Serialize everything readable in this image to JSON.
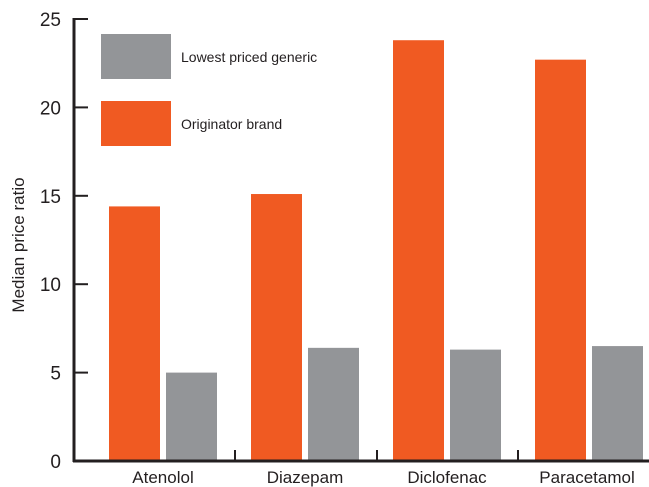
{
  "chart_data": {
    "type": "bar",
    "ylabel": "Median price ratio",
    "xlabel": "",
    "ylim": [
      0,
      25
    ],
    "yticks": [
      "0",
      "5",
      "10",
      "15",
      "20",
      "25"
    ],
    "categories": [
      "Atenolol",
      "Diazepam",
      "Diclofenac",
      "Paracetamol"
    ],
    "series": [
      {
        "name": "Originator brand",
        "color": "#f05a22",
        "values": [
          14.4,
          15.1,
          23.8,
          22.7
        ]
      },
      {
        "name": "Lowest priced generic",
        "color": "#939598",
        "values": [
          5.0,
          6.4,
          6.3,
          6.5
        ]
      }
    ],
    "legend": {
      "position": "top-left",
      "items": [
        {
          "label": "Lowest priced generic",
          "color": "#939598"
        },
        {
          "label": "Originator brand",
          "color": "#f05a22"
        }
      ]
    },
    "grid": false
  }
}
